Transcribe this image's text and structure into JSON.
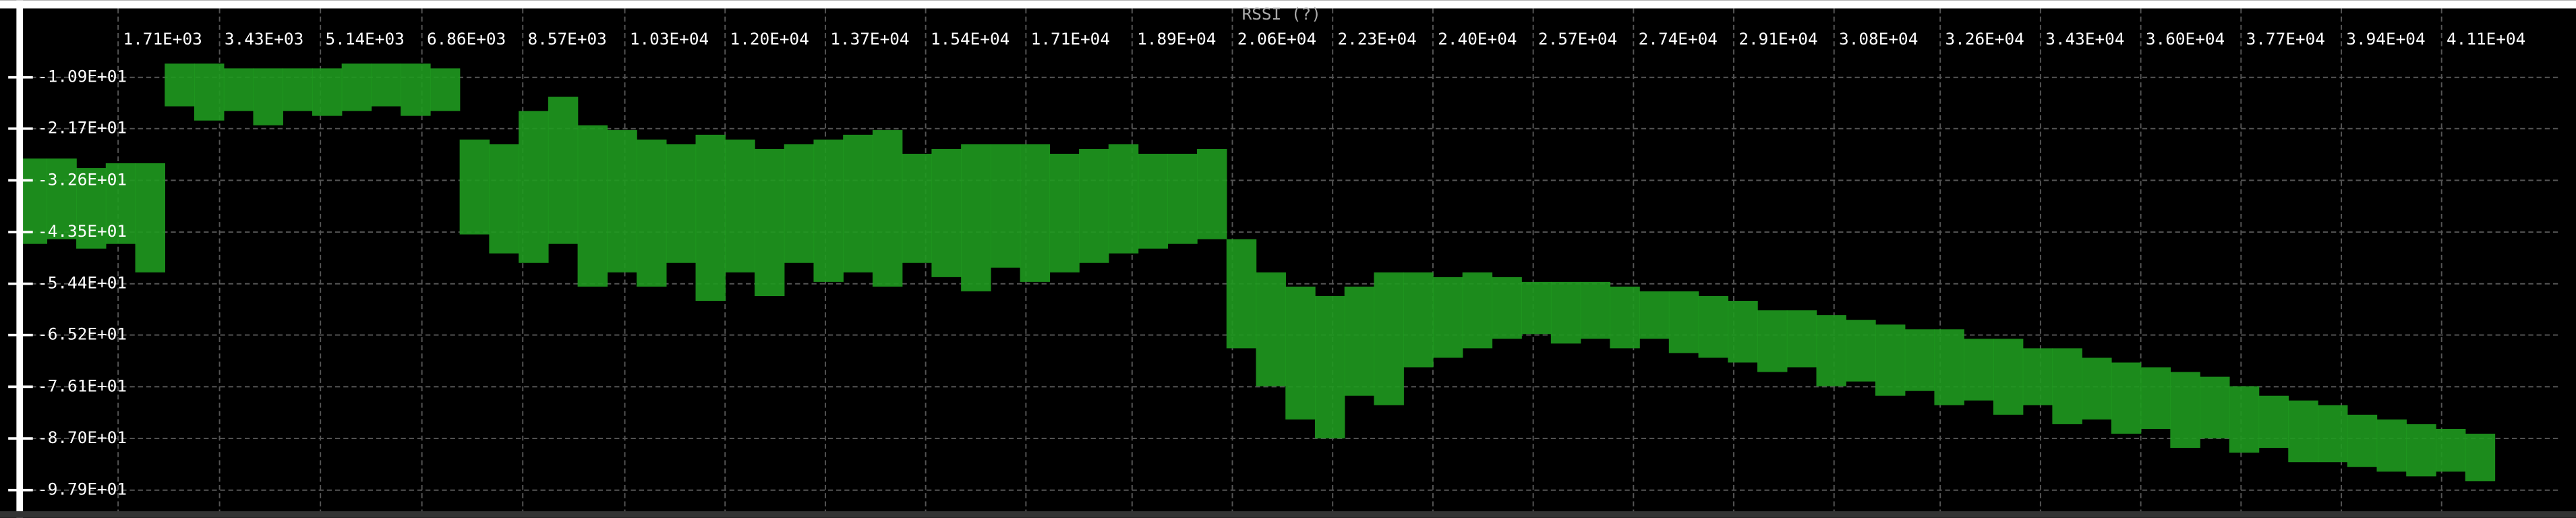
{
  "chart_data": {
    "type": "range",
    "title": "RSSI (?)",
    "grid": true,
    "xlim": [
      0,
      43100
    ],
    "ylim": [
      -103,
      0
    ],
    "xticks": [
      {
        "value": 1710,
        "label": "1.71E+03"
      },
      {
        "value": 3430,
        "label": "3.43E+03"
      },
      {
        "value": 5140,
        "label": "5.14E+03"
      },
      {
        "value": 6860,
        "label": "6.86E+03"
      },
      {
        "value": 8570,
        "label": "8.57E+03"
      },
      {
        "value": 10300,
        "label": "1.03E+04"
      },
      {
        "value": 12000,
        "label": "1.20E+04"
      },
      {
        "value": 13700,
        "label": "1.37E+04"
      },
      {
        "value": 15400,
        "label": "1.54E+04"
      },
      {
        "value": 17100,
        "label": "1.71E+04"
      },
      {
        "value": 18900,
        "label": "1.89E+04"
      },
      {
        "value": 20600,
        "label": "2.06E+04"
      },
      {
        "value": 22300,
        "label": "2.23E+04"
      },
      {
        "value": 24000,
        "label": "2.40E+04"
      },
      {
        "value": 25700,
        "label": "2.57E+04"
      },
      {
        "value": 27400,
        "label": "2.74E+04"
      },
      {
        "value": 29100,
        "label": "2.91E+04"
      },
      {
        "value": 30800,
        "label": "3.08E+04"
      },
      {
        "value": 32600,
        "label": "3.26E+04"
      },
      {
        "value": 34300,
        "label": "3.43E+04"
      },
      {
        "value": 36000,
        "label": "3.60E+04"
      },
      {
        "value": 37700,
        "label": "3.77E+04"
      },
      {
        "value": 39400,
        "label": "3.94E+04"
      },
      {
        "value": 41100,
        "label": "4.11E+04"
      }
    ],
    "yticks": [
      {
        "value": -10.9,
        "label": "-1.09E+01"
      },
      {
        "value": -21.7,
        "label": "-2.17E+01"
      },
      {
        "value": -32.6,
        "label": "-3.26E+01"
      },
      {
        "value": -43.5,
        "label": "-4.35E+01"
      },
      {
        "value": -54.4,
        "label": "-5.44E+01"
      },
      {
        "value": -65.2,
        "label": "-6.52E+01"
      },
      {
        "value": -76.1,
        "label": "-7.61E+01"
      },
      {
        "value": -87.0,
        "label": "-8.70E+01"
      },
      {
        "value": -97.9,
        "label": "-9.79E+01"
      }
    ],
    "color": "#1f9a1f",
    "x": [
      250,
      750,
      1250,
      1750,
      2250,
      2750,
      3250,
      3750,
      4250,
      4750,
      5250,
      5750,
      6250,
      6750,
      7250,
      7750,
      8250,
      8750,
      9250,
      9750,
      10250,
      10750,
      11250,
      11750,
      12250,
      12750,
      13250,
      13750,
      14250,
      14750,
      15250,
      15750,
      16250,
      16750,
      17250,
      17750,
      18250,
      18750,
      19250,
      19750,
      20250,
      20750,
      21250,
      21750,
      22250,
      22750,
      23250,
      23750,
      24250,
      24750,
      25250,
      25750,
      26250,
      26750,
      27250,
      27750,
      28250,
      28750,
      29250,
      29750,
      30250,
      30750,
      31250,
      31750,
      32250,
      32750,
      33250,
      33750,
      34250,
      34750,
      35250,
      35750,
      36250,
      36750,
      37250,
      37750,
      38250,
      38750,
      39250,
      39750,
      40250,
      40750,
      41250,
      41750
    ],
    "low": [
      -46,
      -45,
      -47,
      -46,
      -52,
      -17,
      -20,
      -18,
      -21,
      -18,
      -19,
      -18,
      -17,
      -19,
      -18,
      -44,
      -48,
      -50,
      -46,
      -55,
      -52,
      -55,
      -50,
      -58,
      -52,
      -57,
      -50,
      -54,
      -52,
      -55,
      -50,
      -53,
      -56,
      -51,
      -54,
      -52,
      -50,
      -48,
      -47,
      -46,
      -45,
      -68,
      -76,
      -83,
      -87,
      -78,
      -80,
      -72,
      -70,
      -68,
      -66,
      -65,
      -67,
      -66,
      -68,
      -66,
      -69,
      -70,
      -71,
      -73,
      -72,
      -76,
      -75,
      -78,
      -77,
      -80,
      -79,
      -82,
      -80,
      -84,
      -83,
      -86,
      -85,
      -89,
      -87,
      -90,
      -89,
      -92,
      -92,
      -93,
      -94,
      -95,
      -94,
      -96
    ],
    "high": [
      -28,
      -28,
      -30,
      -29,
      -29,
      -8,
      -8,
      -9,
      -9,
      -9,
      -9,
      -8,
      -8,
      -8,
      -9,
      -24,
      -25,
      -18,
      -15,
      -21,
      -22,
      -24,
      -25,
      -23,
      -24,
      -26,
      -25,
      -24,
      -23,
      -22,
      -27,
      -26,
      -25,
      -25,
      -25,
      -27,
      -26,
      -25,
      -27,
      -27,
      -26,
      -45,
      -52,
      -55,
      -57,
      -55,
      -52,
      -52,
      -53,
      -52,
      -53,
      -54,
      -54,
      -54,
      -55,
      -56,
      -56,
      -57,
      -58,
      -60,
      -60,
      -61,
      -62,
      -63,
      -64,
      -64,
      -66,
      -66,
      -68,
      -68,
      -70,
      -71,
      -72,
      -73,
      -74,
      -76,
      -78,
      -79,
      -80,
      -82,
      -83,
      -84,
      -85,
      -86
    ]
  }
}
